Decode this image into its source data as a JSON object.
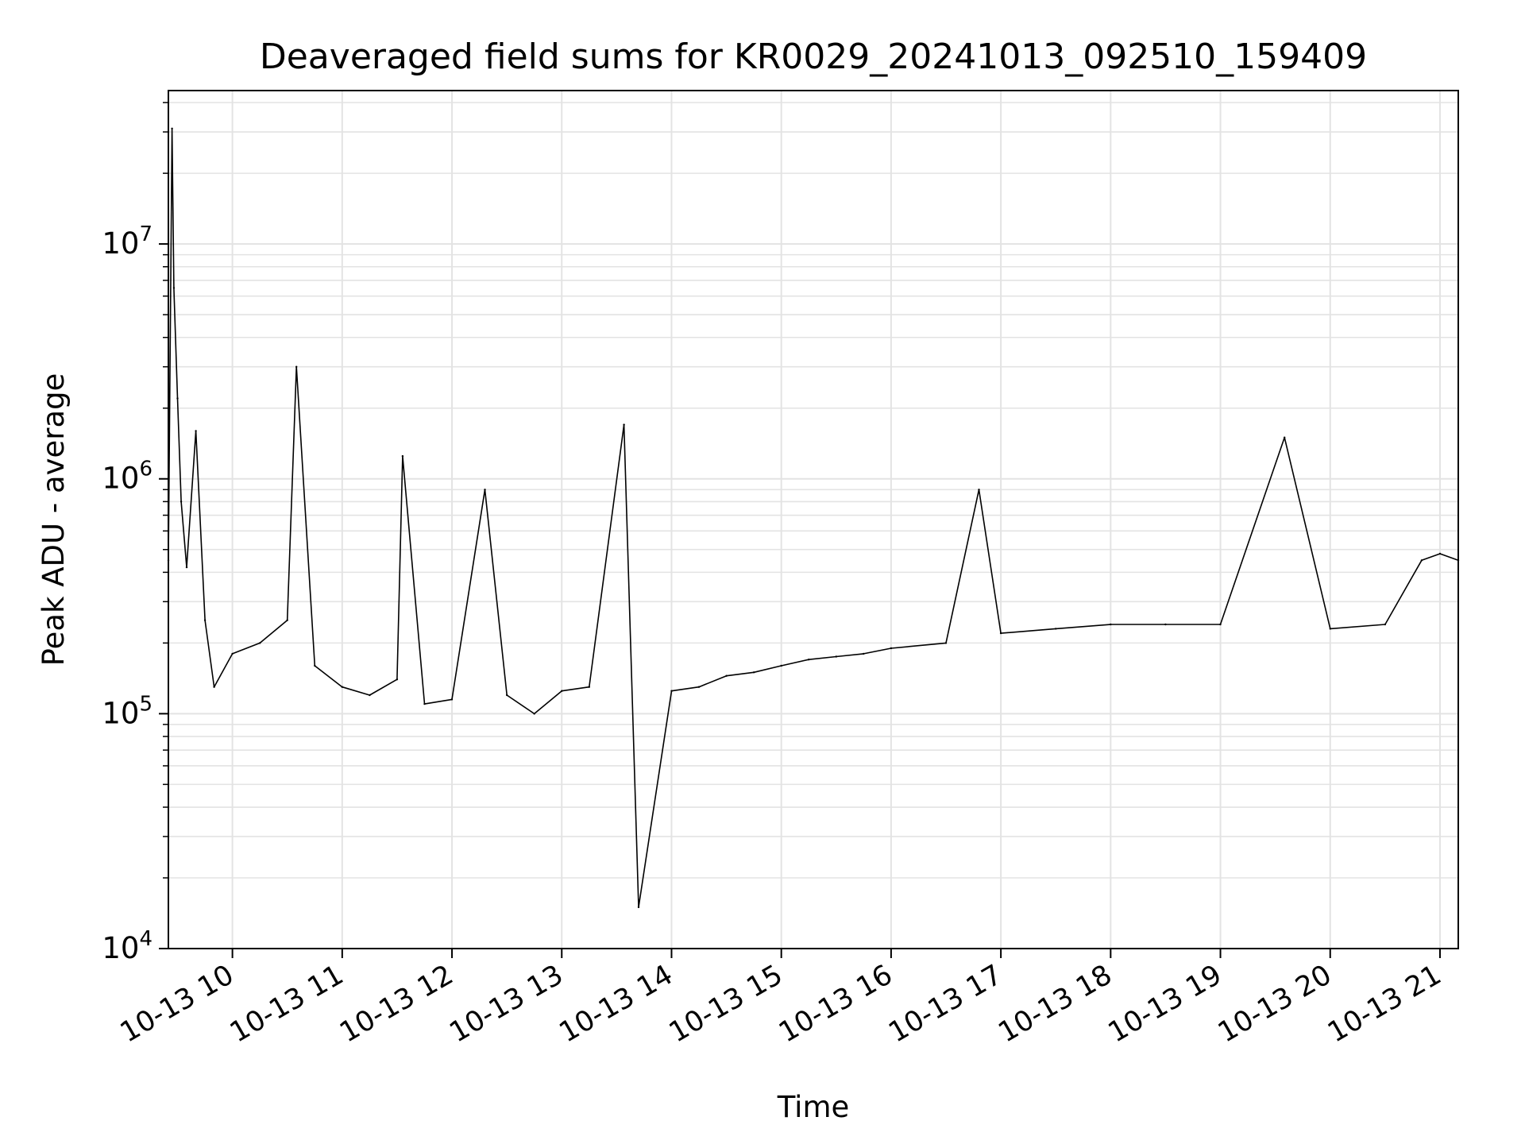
{
  "chart_data": {
    "type": "line",
    "title": "Deaveraged field sums for KR0029_20241013_092510_159409",
    "xlabel": "Time",
    "ylabel": "Peak ADU - average",
    "x_start": "2024-10-13 09:25",
    "x_end": "2024-10-13 21:10",
    "xlim": [
      "2024-10-13 09:25",
      "2024-10-13 21:10"
    ],
    "yscale": "log",
    "ylim": [
      10000,
      45000000
    ],
    "grid": true,
    "line_color": "#000000",
    "grid_color": "#e3e3e3",
    "x_ticks": [
      {
        "value": "2024-10-13 10:00",
        "label": "10-13 10"
      },
      {
        "value": "2024-10-13 11:00",
        "label": "10-13 11"
      },
      {
        "value": "2024-10-13 12:00",
        "label": "10-13 12"
      },
      {
        "value": "2024-10-13 13:00",
        "label": "10-13 13"
      },
      {
        "value": "2024-10-13 14:00",
        "label": "10-13 14"
      },
      {
        "value": "2024-10-13 15:00",
        "label": "10-13 15"
      },
      {
        "value": "2024-10-13 16:00",
        "label": "10-13 16"
      },
      {
        "value": "2024-10-13 17:00",
        "label": "10-13 17"
      },
      {
        "value": "2024-10-13 18:00",
        "label": "10-13 18"
      },
      {
        "value": "2024-10-13 19:00",
        "label": "10-13 19"
      },
      {
        "value": "2024-10-13 20:00",
        "label": "10-13 20"
      },
      {
        "value": "2024-10-13 21:00",
        "label": "10-13 21"
      }
    ],
    "y_ticks": [
      {
        "value": 10000,
        "base": "10",
        "exp": "4"
      },
      {
        "value": 100000,
        "base": "10",
        "exp": "5"
      },
      {
        "value": 1000000,
        "base": "10",
        "exp": "6"
      },
      {
        "value": 10000000,
        "base": "10",
        "exp": "7"
      }
    ],
    "series": [
      {
        "points": [
          [
            "2024-10-13 09:25",
            450000
          ],
          [
            "2024-10-13 09:27",
            31000000
          ],
          [
            "2024-10-13 09:28",
            6500000
          ],
          [
            "2024-10-13 09:30",
            2200000
          ],
          [
            "2024-10-13 09:32",
            800000
          ],
          [
            "2024-10-13 09:35",
            420000
          ],
          [
            "2024-10-13 09:40",
            1600000
          ],
          [
            "2024-10-13 09:45",
            250000
          ],
          [
            "2024-10-13 09:50",
            130000
          ],
          [
            "2024-10-13 10:00",
            180000
          ],
          [
            "2024-10-13 10:15",
            200000
          ],
          [
            "2024-10-13 10:30",
            250000
          ],
          [
            "2024-10-13 10:35",
            3000000
          ],
          [
            "2024-10-13 10:45",
            160000
          ],
          [
            "2024-10-13 11:00",
            130000
          ],
          [
            "2024-10-13 11:15",
            120000
          ],
          [
            "2024-10-13 11:30",
            140000
          ],
          [
            "2024-10-13 11:33",
            1250000
          ],
          [
            "2024-10-13 11:45",
            110000
          ],
          [
            "2024-10-13 12:00",
            115000
          ],
          [
            "2024-10-13 12:18",
            900000
          ],
          [
            "2024-10-13 12:30",
            120000
          ],
          [
            "2024-10-13 12:45",
            100000
          ],
          [
            "2024-10-13 13:00",
            125000
          ],
          [
            "2024-10-13 13:15",
            130000
          ],
          [
            "2024-10-13 13:34",
            1700000
          ],
          [
            "2024-10-13 13:42",
            15000
          ],
          [
            "2024-10-13 14:00",
            125000
          ],
          [
            "2024-10-13 14:15",
            130000
          ],
          [
            "2024-10-13 14:30",
            145000
          ],
          [
            "2024-10-13 14:45",
            150000
          ],
          [
            "2024-10-13 15:00",
            160000
          ],
          [
            "2024-10-13 15:15",
            170000
          ],
          [
            "2024-10-13 15:30",
            175000
          ],
          [
            "2024-10-13 15:45",
            180000
          ],
          [
            "2024-10-13 16:00",
            190000
          ],
          [
            "2024-10-13 16:30",
            200000
          ],
          [
            "2024-10-13 16:48",
            900000
          ],
          [
            "2024-10-13 17:00",
            220000
          ],
          [
            "2024-10-13 17:30",
            230000
          ],
          [
            "2024-10-13 18:00",
            240000
          ],
          [
            "2024-10-13 18:30",
            240000
          ],
          [
            "2024-10-13 19:00",
            240000
          ],
          [
            "2024-10-13 19:35",
            1500000
          ],
          [
            "2024-10-13 20:00",
            230000
          ],
          [
            "2024-10-13 20:30",
            240000
          ],
          [
            "2024-10-13 20:50",
            450000
          ],
          [
            "2024-10-13 21:00",
            480000
          ],
          [
            "2024-10-13 21:10",
            450000
          ]
        ]
      }
    ]
  }
}
